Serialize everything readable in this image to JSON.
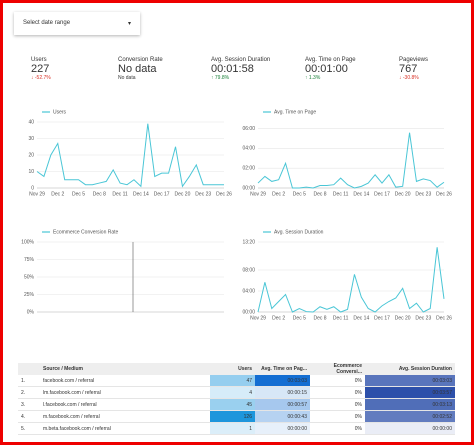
{
  "date_range": {
    "label": "Select date range",
    "arrow": "▾"
  },
  "kpis": [
    {
      "label": "Users",
      "value": "227",
      "delta": "↓ -52.7%",
      "color": "#d93025"
    },
    {
      "label": "Conversion Rate",
      "value": "No data",
      "delta": "No data",
      "color": "#333333"
    },
    {
      "label": "Avg. Session Duration",
      "value": "00:01:58",
      "delta": "↑ 79.8%",
      "color": "#188038"
    },
    {
      "label": "Avg. Time on Page",
      "value": "00:01:00",
      "delta": "↑ 1.3%",
      "color": "#188038"
    },
    {
      "label": "Pageviews",
      "value": "767",
      "delta": "↓ -30.8%",
      "color": "#d93025"
    }
  ],
  "chart_data": [
    {
      "type": "line",
      "categories": [
        "Nov 29",
        null,
        null,
        "Dec 2",
        null,
        null,
        "Dec 5",
        null,
        null,
        "Dec 8",
        null,
        null,
        "Dec 11",
        null,
        null,
        "Dec 14",
        null,
        null,
        "Dec 17",
        null,
        null,
        "Dec 20",
        null,
        null,
        "Dec 23",
        null,
        null,
        "Dec 26"
      ],
      "series": [
        {
          "name": "Users",
          "color": "#4ac6d6",
          "values": [
            10,
            7,
            20,
            27,
            5,
            5,
            5,
            2,
            2,
            3,
            4,
            11,
            3,
            2,
            5,
            1,
            39,
            7,
            9,
            9,
            25,
            1,
            7,
            14,
            2,
            2,
            2,
            2
          ]
        }
      ],
      "ylim": [
        0,
        40
      ],
      "yticks": [
        0,
        10,
        20,
        30,
        40
      ]
    },
    {
      "type": "line",
      "categories": [
        "Nov 29",
        null,
        null,
        "Dec 2",
        null,
        null,
        "Dec 5",
        null,
        null,
        "Dec 8",
        null,
        null,
        "Dec 11",
        null,
        null,
        "Dec 14",
        null,
        null,
        "Dec 17",
        null,
        null,
        "Dec 20",
        null,
        null,
        "Dec 23",
        null,
        null,
        "Dec 26"
      ],
      "series": [
        {
          "name": "Avg. Time on Page",
          "color": "#4ac6d6",
          "values": [
            30,
            70,
            40,
            50,
            150,
            0,
            0,
            5,
            0,
            15,
            15,
            20,
            60,
            20,
            0,
            10,
            30,
            80,
            30,
            80,
            5,
            10,
            335,
            40,
            55,
            45,
            5,
            35
          ]
        }
      ],
      "ylim": [
        0,
        400
      ],
      "yticks": [
        {
          "value": 0,
          "label": "00:00"
        },
        {
          "value": 120,
          "label": "02:00"
        },
        {
          "value": 240,
          "label": "04:00"
        },
        {
          "value": 360,
          "label": "06:00"
        }
      ]
    },
    {
      "type": "line",
      "categories": [],
      "series": [
        {
          "name": "Ecommerce Conversion Rate",
          "color": "#4ac6d6",
          "values": []
        }
      ],
      "ylim": [
        0,
        100
      ],
      "yticks": [
        {
          "value": 0,
          "label": "0%"
        },
        {
          "value": 25,
          "label": "25%"
        },
        {
          "value": 50,
          "label": "50%"
        },
        {
          "value": 75,
          "label": "75%"
        },
        {
          "value": 100,
          "label": "100%"
        }
      ]
    },
    {
      "type": "line",
      "categories": [
        "Nov 29",
        null,
        null,
        "Dec 2",
        null,
        null,
        "Dec 5",
        null,
        null,
        "Dec 8",
        null,
        null,
        "Dec 11",
        null,
        null,
        "Dec 14",
        null,
        null,
        "Dec 17",
        null,
        null,
        "Dec 20",
        null,
        null,
        "Dec 23",
        null,
        null,
        "Dec 26"
      ],
      "series": [
        {
          "name": "Avg. Session Duration",
          "color": "#4ac6d6",
          "values": [
            0,
            340,
            40,
            120,
            200,
            0,
            40,
            5,
            0,
            60,
            30,
            60,
            0,
            30,
            430,
            170,
            40,
            0,
            70,
            120,
            160,
            270,
            40,
            100,
            0,
            40,
            740,
            150
          ]
        }
      ],
      "ylim": [
        0,
        800
      ],
      "yticks": [
        {
          "value": 0,
          "label": "00:00"
        },
        {
          "value": 240,
          "label": "04:00"
        },
        {
          "value": 480,
          "label": "08:00"
        },
        {
          "value": 800,
          "label": "13:20"
        }
      ]
    }
  ],
  "table": {
    "headers": [
      "Source / Medium",
      "Users",
      "Avg. Time on Pag...",
      "Ecommerce Conversi...",
      "Avg. Session Duration"
    ],
    "rows": [
      [
        "1.",
        "facebook.com / referral",
        47,
        "00:03:03",
        "0%",
        "00:03:03"
      ],
      [
        "2.",
        "lm.facebook.com / referral",
        4,
        "00:00:15",
        "0%",
        "00:03:57"
      ],
      [
        "3.",
        "l.facebook.com / referral",
        45,
        "00:00:57",
        "0%",
        "00:03:13"
      ],
      [
        "4.",
        "m.facebook.com / referral",
        126,
        "00:00:43",
        "0%",
        "00:02:52"
      ],
      [
        "5.",
        "m.beta.facebook.com / referral",
        1,
        "00:00:00",
        "0%",
        "00:00:00"
      ]
    ]
  }
}
